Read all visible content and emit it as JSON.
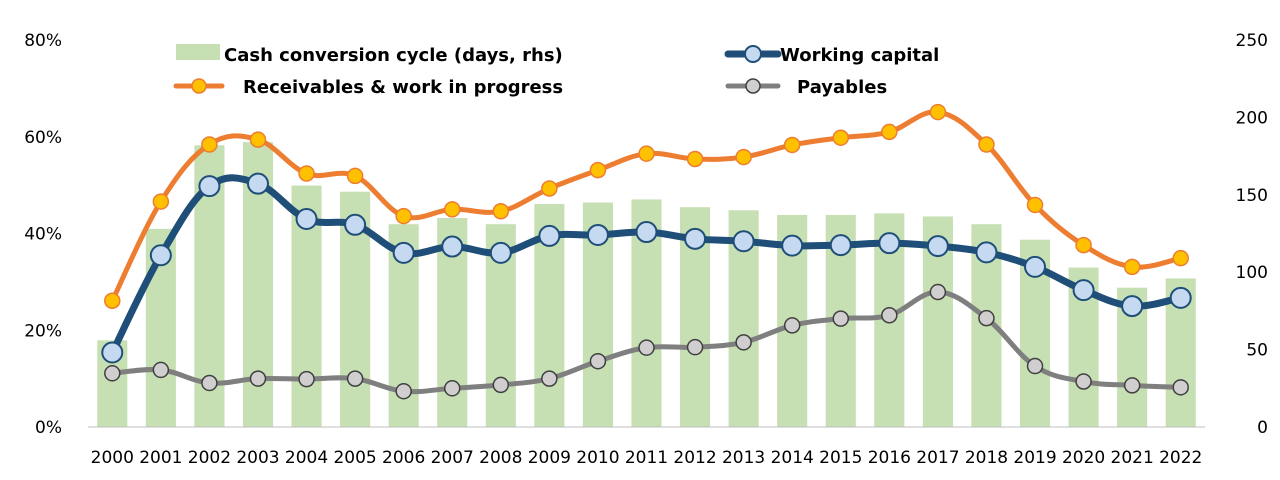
{
  "chart_data": {
    "type": "bar+line",
    "categories": [
      "2000",
      "2001",
      "2002",
      "2003",
      "2004",
      "2005",
      "2006",
      "2007",
      "2008",
      "2009",
      "2010",
      "2011",
      "2012",
      "2013",
      "2014",
      "2015",
      "2016",
      "2017",
      "2018",
      "2019",
      "2020",
      "2021",
      "2022"
    ],
    "left_axis": {
      "ylim": [
        0,
        80
      ],
      "ticks": [
        "0%",
        "20%",
        "40%",
        "60%",
        "80%"
      ]
    },
    "right_axis": {
      "ylim": [
        0,
        250
      ],
      "ticks": [
        "0",
        "50",
        "100",
        "150",
        "200",
        "250"
      ]
    },
    "bars": {
      "name": "Cash conversion cycle (days, rhs)",
      "axis": "right",
      "color": "#c6e0b4",
      "values": [
        56,
        128,
        182,
        184,
        156,
        152,
        131,
        135,
        131,
        144,
        145,
        147,
        142,
        140,
        137,
        137,
        138,
        136,
        131,
        121,
        103,
        90,
        96
      ]
    },
    "series": [
      {
        "name": "Working capital",
        "axis": "left",
        "color": "#1f4e79",
        "marker_fill": "#c5d9f1",
        "values": [
          15.4,
          35.5,
          49.8,
          50.3,
          43.0,
          41.8,
          36.0,
          37.3,
          36.0,
          39.5,
          39.7,
          40.3,
          38.9,
          38.4,
          37.5,
          37.6,
          38.0,
          37.4,
          36.1,
          33.1,
          28.3,
          25.0,
          26.7
        ]
      },
      {
        "name": "Receivables & work in progress",
        "axis": "left",
        "color": "#ed7d31",
        "marker_fill": "#ffc000",
        "values": [
          26.1,
          46.6,
          58.4,
          59.4,
          52.4,
          51.9,
          43.6,
          45.0,
          44.6,
          49.3,
          53.1,
          56.5,
          55.4,
          55.8,
          58.3,
          59.8,
          61.0,
          65.1,
          58.4,
          45.9,
          37.6,
          33.1,
          34.9
        ]
      },
      {
        "name": "Payables",
        "axis": "left",
        "color": "#7f7f7f",
        "marker_fill": "#d0cece",
        "values": [
          11.1,
          11.8,
          9.1,
          10.0,
          9.9,
          10.0,
          7.4,
          8.0,
          8.7,
          10.0,
          13.6,
          16.4,
          16.5,
          17.5,
          21.0,
          22.4,
          23.1,
          27.9,
          22.5,
          12.6,
          9.4,
          8.6,
          8.2
        ]
      }
    ],
    "legend": "top-center, two columns",
    "grid": false
  }
}
